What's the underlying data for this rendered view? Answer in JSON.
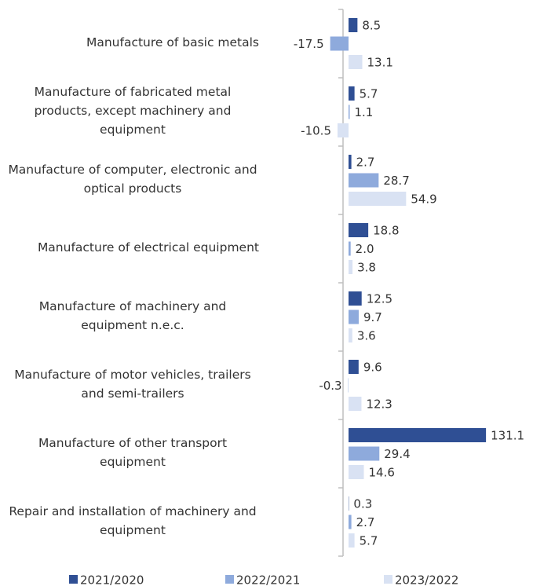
{
  "chart_data": {
    "type": "hbar",
    "categories": [
      "Manufacture of basic metals",
      "Manufacture of fabricated metal products, except machinery and equipment",
      "Manufacture of computer, electronic and optical products",
      "Manufacture of electrical equipment",
      "Manufacture of machinery and equipment n.e.c.",
      "Manufacture of motor vehicles, trailers and semi-trailers",
      "Manufacture of other transport equipment",
      "Repair and installation of machinery and equipment"
    ],
    "series": [
      {
        "name": "2021/2020",
        "color": "#2f4f94",
        "values": [
          8.5,
          5.7,
          2.7,
          18.8,
          12.5,
          9.6,
          131.1,
          0.3
        ],
        "value_labels": [
          "8.5",
          "5.7",
          "2.7",
          "18.8",
          "12.5",
          "9.6",
          "131.1",
          "0.3"
        ]
      },
      {
        "name": "2022/2021",
        "color": "#8eaadc",
        "values": [
          -17.5,
          1.1,
          28.7,
          2.0,
          9.7,
          -0.3,
          29.4,
          2.7
        ],
        "value_labels": [
          "-17.5",
          "1.1",
          "28.7",
          "2.0",
          "9.7",
          "-0.3",
          "29.4",
          "2.7"
        ]
      },
      {
        "name": "2023/2022",
        "color": "#d9e2f3",
        "values": [
          13.1,
          -10.5,
          54.9,
          3.8,
          3.6,
          12.3,
          14.6,
          5.7
        ],
        "value_labels": [
          "13.1",
          "-10.5",
          "54.9",
          "3.8",
          "3.6",
          "12.3",
          "14.6",
          "5.7"
        ]
      }
    ],
    "xlim": [
      -20,
      140
    ],
    "legend": "bottom"
  }
}
